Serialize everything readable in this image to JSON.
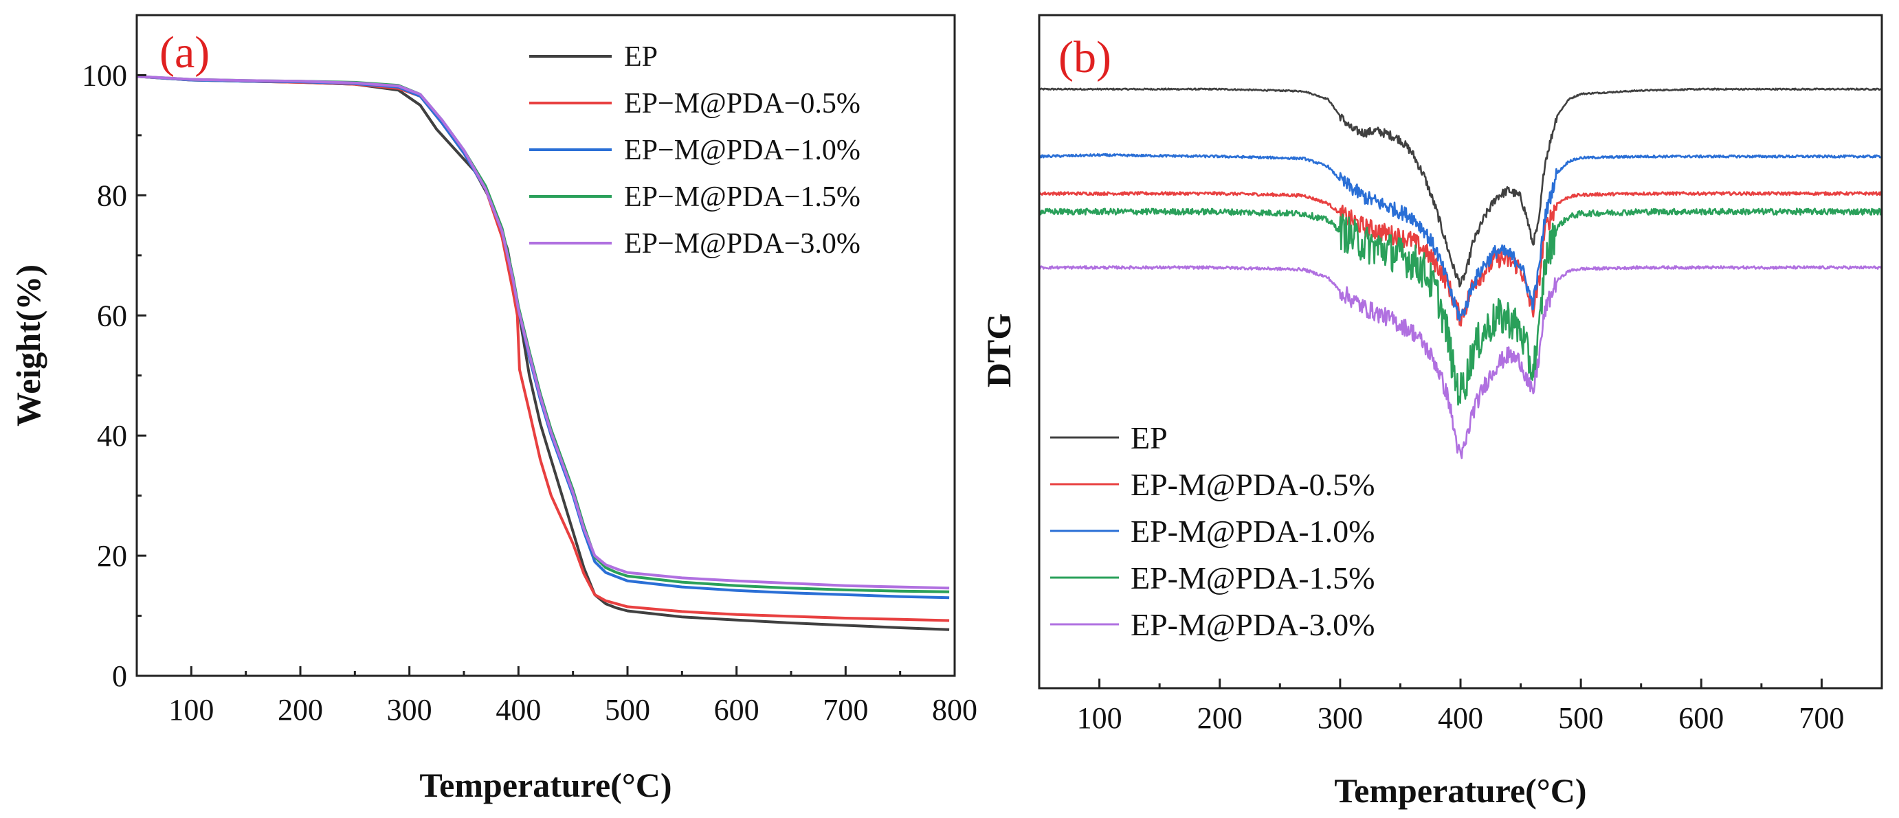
{
  "chart_data": [
    {
      "type": "line",
      "panel_label": "(a)",
      "xlabel": "Temperature(°C)",
      "ylabel": "Weight(%)",
      "xlim": [
        50,
        800
      ],
      "ylim": [
        0,
        110
      ],
      "xticks": [
        100,
        200,
        300,
        400,
        500,
        600,
        700,
        800
      ],
      "yticks": [
        0,
        20,
        40,
        60,
        80,
        100
      ],
      "legend_position": "top-right",
      "series": [
        {
          "name": "EP",
          "color": "#404040",
          "x": [
            50,
            100,
            150,
            200,
            250,
            290,
            310,
            325,
            340,
            360,
            375,
            390,
            400,
            410,
            420,
            430,
            440,
            450,
            460,
            470,
            480,
            490,
            500,
            550,
            600,
            650,
            700,
            750,
            795
          ],
          "y": [
            99.8,
            99.2,
            99.0,
            98.8,
            98.5,
            97.5,
            95.0,
            91.0,
            88.0,
            84.0,
            79.0,
            71.0,
            61.0,
            50.0,
            42.0,
            36.0,
            30.0,
            24.0,
            18.0,
            13.5,
            12.0,
            11.3,
            10.8,
            9.8,
            9.3,
            8.8,
            8.4,
            8.0,
            7.7
          ]
        },
        {
          "name": "EP−M@PDA−0.5%",
          "color": "#e84040",
          "x": [
            50,
            100,
            150,
            200,
            250,
            290,
            310,
            330,
            350,
            370,
            385,
            395,
            399,
            401,
            410,
            420,
            430,
            440,
            450,
            460,
            470,
            480,
            490,
            500,
            550,
            600,
            650,
            700,
            750,
            795
          ],
          "y": [
            99.8,
            99.2,
            99.0,
            98.8,
            98.5,
            97.8,
            96.5,
            92.0,
            87.0,
            81.0,
            73.0,
            64.0,
            60.0,
            51.0,
            44.0,
            36.0,
            30.0,
            26.0,
            22.0,
            17.0,
            13.5,
            12.5,
            12.0,
            11.5,
            10.7,
            10.2,
            9.9,
            9.6,
            9.4,
            9.2
          ]
        },
        {
          "name": "EP−M@PDA−1.0%",
          "color": "#2a6fd6",
          "x": [
            50,
            100,
            150,
            200,
            250,
            290,
            310,
            330,
            350,
            370,
            385,
            395,
            400,
            410,
            420,
            430,
            440,
            450,
            460,
            470,
            480,
            490,
            500,
            550,
            600,
            650,
            700,
            750,
            795
          ],
          "y": [
            99.8,
            99.2,
            99.0,
            98.9,
            98.6,
            98.0,
            96.5,
            92.0,
            87.0,
            81.0,
            74.0,
            66.0,
            61.0,
            53.0,
            46.0,
            40.0,
            35.0,
            30.0,
            24.0,
            19.0,
            17.2,
            16.5,
            15.8,
            14.8,
            14.2,
            13.8,
            13.5,
            13.2,
            13.0
          ]
        },
        {
          "name": "EP−M@PDA−1.5%",
          "color": "#2aa05a",
          "x": [
            50,
            100,
            150,
            200,
            250,
            290,
            310,
            330,
            350,
            370,
            385,
            395,
            400,
            410,
            420,
            430,
            440,
            450,
            460,
            470,
            480,
            490,
            500,
            550,
            600,
            650,
            700,
            750,
            795
          ],
          "y": [
            99.8,
            99.3,
            99.1,
            99.0,
            98.8,
            98.3,
            96.8,
            92.5,
            87.5,
            81.5,
            74.5,
            66.5,
            61.5,
            54.0,
            47.0,
            41.0,
            36.0,
            31.0,
            25.0,
            19.8,
            18.0,
            17.2,
            16.6,
            15.6,
            15.0,
            14.6,
            14.3,
            14.1,
            14.0
          ]
        },
        {
          "name": "EP−M@PDA−3.0%",
          "color": "#b070e0",
          "x": [
            50,
            100,
            150,
            200,
            250,
            290,
            310,
            330,
            350,
            370,
            385,
            395,
            400,
            410,
            420,
            430,
            440,
            450,
            460,
            470,
            480,
            490,
            500,
            550,
            600,
            650,
            700,
            750,
            795
          ],
          "y": [
            99.8,
            99.3,
            99.1,
            99.0,
            98.7,
            98.2,
            96.8,
            92.5,
            87.5,
            81.0,
            74.0,
            66.0,
            61.0,
            53.5,
            46.5,
            40.5,
            35.5,
            30.5,
            24.5,
            20.0,
            18.5,
            17.8,
            17.2,
            16.3,
            15.8,
            15.4,
            15.0,
            14.8,
            14.6
          ]
        }
      ]
    },
    {
      "type": "line",
      "panel_label": "(b)",
      "xlabel": "Temperature(°C)",
      "ylabel": "DTG",
      "y_unit": "arbitrary (curves vertically offset, no y tick labels)",
      "xlim": [
        50,
        750
      ],
      "ylim": [
        0,
        100
      ],
      "xticks": [
        100,
        200,
        300,
        400,
        500,
        600,
        700
      ],
      "legend_position": "bottom-left",
      "series": [
        {
          "name": "EP",
          "color": "#404040",
          "noise": 0.6,
          "x": [
            50,
            100,
            200,
            270,
            290,
            300,
            310,
            320,
            330,
            340,
            350,
            360,
            370,
            380,
            390,
            395,
            400,
            405,
            410,
            420,
            430,
            440,
            450,
            455,
            460,
            465,
            470,
            480,
            490,
            500,
            550,
            600,
            650,
            700,
            750
          ],
          "y": [
            89,
            89,
            89,
            88.7,
            87.5,
            85,
            83,
            82.5,
            82.8,
            82.3,
            81.5,
            79.5,
            76,
            71,
            65,
            62,
            60,
            62,
            66,
            70,
            73,
            74,
            73,
            70,
            66,
            69,
            78,
            85,
            87.5,
            88.3,
            88.8,
            89,
            89,
            89,
            89
          ]
        },
        {
          "name": "EP-M@PDA-0.5%",
          "color": "#e84040",
          "noise": 1.3,
          "x": [
            50,
            100,
            200,
            270,
            290,
            300,
            320,
            340,
            360,
            370,
            380,
            390,
            395,
            400,
            405,
            410,
            420,
            430,
            440,
            450,
            455,
            460,
            465,
            470,
            480,
            490,
            500,
            550,
            650,
            750
          ],
          "y": [
            73.5,
            73.5,
            73.5,
            73.2,
            72,
            70.5,
            68.5,
            67.5,
            66.5,
            65,
            63,
            60,
            57,
            55,
            57,
            60,
            62,
            64,
            63.5,
            62.5,
            59,
            56,
            60,
            68,
            72,
            73,
            73.3,
            73.5,
            73.5,
            73.5
          ]
        },
        {
          "name": "EP-M@PDA-1.0%",
          "color": "#2a6fd6",
          "noise": 1.0,
          "x": [
            50,
            100,
            200,
            270,
            290,
            300,
            320,
            340,
            360,
            370,
            380,
            390,
            395,
            400,
            405,
            410,
            420,
            430,
            440,
            450,
            455,
            460,
            465,
            470,
            480,
            490,
            500,
            550,
            650,
            750
          ],
          "y": [
            79,
            79.2,
            79,
            78.7,
            77.5,
            75.5,
            73,
            71.5,
            70,
            68,
            65,
            60,
            57,
            55,
            57,
            60,
            63,
            65,
            64.5,
            63,
            60,
            57,
            62,
            70,
            76.5,
            78.3,
            78.8,
            79,
            79,
            79
          ]
        },
        {
          "name": "EP-M@PDA-1.5%",
          "color": "#2aa05a",
          "noise": 2.6,
          "x": [
            50,
            100,
            200,
            270,
            290,
            300,
            320,
            340,
            360,
            370,
            380,
            390,
            395,
            400,
            405,
            410,
            420,
            430,
            440,
            450,
            455,
            460,
            465,
            470,
            480,
            490,
            500,
            550,
            650,
            750
          ],
          "y": [
            70.8,
            70.8,
            70.8,
            70.5,
            69.5,
            68,
            66,
            65,
            63.5,
            62,
            59,
            52,
            46,
            44,
            46,
            50,
            53,
            55,
            55,
            53,
            50,
            47,
            52,
            63,
            68.5,
            70,
            70.5,
            70.8,
            70.8,
            70.8
          ]
        },
        {
          "name": "EP-M@PDA-3.0%",
          "color": "#b070e0",
          "noise": 1.2,
          "x": [
            50,
            100,
            200,
            270,
            290,
            300,
            320,
            340,
            360,
            370,
            380,
            390,
            395,
            400,
            405,
            410,
            420,
            430,
            440,
            450,
            455,
            460,
            465,
            470,
            480,
            490,
            500,
            550,
            650,
            750
          ],
          "y": [
            62.5,
            62.5,
            62.5,
            62.2,
            61,
            59,
            56.5,
            55,
            53,
            51,
            48,
            43,
            38,
            34,
            37,
            41,
            45,
            48,
            49.5,
            48.5,
            46,
            43.5,
            49,
            56,
            60.5,
            62,
            62.3,
            62.5,
            62.5,
            62.5
          ]
        }
      ]
    }
  ]
}
